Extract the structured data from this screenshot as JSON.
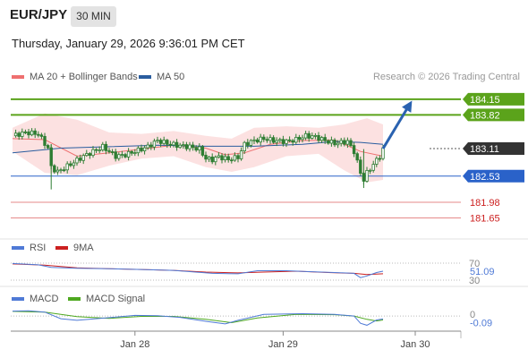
{
  "header": {
    "symbol": "EUR/JPY",
    "timeframe": "30 MIN",
    "datetime": "Thursday, January 29, 2026 9:36:01 PM CET",
    "credit": "Research © 2026 Trading Central"
  },
  "colors": {
    "ma20": "#ee7070",
    "ma50": "#2a5d9f",
    "bands": "#fbdcdc",
    "candle": "#2e7d32",
    "resistance": "#5ba31b",
    "support": "#2a62c9",
    "minor": "#e68a8a",
    "current": "#333333",
    "rsi": "#4f7ad6",
    "rsi_ma": "#cc2020",
    "macd": "#4f7ad6",
    "macd_signal": "#4ea820",
    "arrow": "#2a62b0"
  },
  "chart_data": [
    {
      "type": "candlestick",
      "legend": [
        {
          "name": "MA 20 + Bollinger Bands",
          "color": "#ee7070"
        },
        {
          "name": "MA 50",
          "color": "#2a5d9f"
        }
      ],
      "ylim": [
        181.3,
        184.45
      ],
      "levels": [
        {
          "value": 184.15,
          "label": "184.15",
          "kind": "resistance"
        },
        {
          "value": 183.82,
          "label": "183.82",
          "kind": "resistance"
        },
        {
          "value": 183.11,
          "label": "183.11",
          "kind": "current"
        },
        {
          "value": 182.53,
          "label": "182.53",
          "kind": "support"
        },
        {
          "value": 181.98,
          "label": "181.98",
          "kind": "minor"
        },
        {
          "value": 181.65,
          "label": "181.65",
          "kind": "minor"
        }
      ],
      "close_path": [
        [
          0,
          183.38
        ],
        [
          4,
          183.45
        ],
        [
          8,
          183.42
        ],
        [
          11,
          183.12
        ],
        [
          12,
          182.72
        ],
        [
          14,
          182.62
        ],
        [
          18,
          182.78
        ],
        [
          22,
          182.95
        ],
        [
          25,
          183.05
        ],
        [
          28,
          183.15
        ],
        [
          32,
          182.95
        ],
        [
          35,
          182.98
        ],
        [
          38,
          183.05
        ],
        [
          42,
          183.15
        ],
        [
          45,
          183.28
        ],
        [
          48,
          183.22
        ],
        [
          51,
          183.18
        ],
        [
          55,
          183.15
        ],
        [
          58,
          183.1
        ],
        [
          60,
          182.9
        ],
        [
          62,
          182.88
        ],
        [
          64,
          182.94
        ],
        [
          67,
          182.88
        ],
        [
          70,
          182.93
        ],
        [
          72,
          183.2
        ],
        [
          75,
          183.28
        ],
        [
          78,
          183.32
        ],
        [
          81,
          183.28
        ],
        [
          85,
          183.26
        ],
        [
          88,
          183.3
        ],
        [
          91,
          183.38
        ],
        [
          94,
          183.36
        ],
        [
          97,
          183.28
        ],
        [
          100,
          183.22
        ],
        [
          104,
          183.26
        ],
        [
          106,
          183.05
        ],
        [
          108,
          182.6
        ],
        [
          109,
          182.45
        ],
        [
          110,
          182.6
        ],
        [
          112,
          182.78
        ],
        [
          114,
          182.95
        ],
        [
          115,
          183.1
        ]
      ],
      "ma20_path": [
        [
          0,
          183.32
        ],
        [
          10,
          183.3
        ],
        [
          20,
          182.95
        ],
        [
          30,
          183.02
        ],
        [
          40,
          183.1
        ],
        [
          50,
          183.18
        ],
        [
          60,
          183.12
        ],
        [
          66,
          182.98
        ],
        [
          72,
          183.02
        ],
        [
          80,
          183.2
        ],
        [
          90,
          183.28
        ],
        [
          100,
          183.29
        ],
        [
          108,
          183.05
        ],
        [
          115,
          182.95
        ]
      ],
      "ma50_path": [
        [
          0,
          183.02
        ],
        [
          15,
          183.12
        ],
        [
          30,
          183.15
        ],
        [
          45,
          183.18
        ],
        [
          60,
          183.16
        ],
        [
          75,
          183.16
        ],
        [
          90,
          183.2
        ],
        [
          100,
          183.26
        ],
        [
          108,
          183.24
        ],
        [
          115,
          183.2
        ]
      ],
      "bands_upper": [
        [
          0,
          183.55
        ],
        [
          10,
          183.85
        ],
        [
          20,
          183.72
        ],
        [
          30,
          183.45
        ],
        [
          40,
          183.42
        ],
        [
          50,
          183.48
        ],
        [
          60,
          183.38
        ],
        [
          68,
          183.32
        ],
        [
          75,
          183.55
        ],
        [
          85,
          183.58
        ],
        [
          95,
          183.55
        ],
        [
          103,
          183.62
        ],
        [
          110,
          183.75
        ],
        [
          115,
          183.62
        ]
      ],
      "bands_lower": [
        [
          0,
          183.05
        ],
        [
          10,
          182.6
        ],
        [
          20,
          182.55
        ],
        [
          30,
          182.75
        ],
        [
          40,
          182.9
        ],
        [
          50,
          182.95
        ],
        [
          60,
          182.72
        ],
        [
          68,
          182.62
        ],
        [
          75,
          182.72
        ],
        [
          85,
          182.95
        ],
        [
          95,
          183.0
        ],
        [
          103,
          182.65
        ],
        [
          110,
          182.4
        ],
        [
          115,
          182.45
        ]
      ],
      "projection_arrow": [
        [
          115,
          183.11
        ],
        [
          124,
          184.12
        ]
      ]
    },
    {
      "type": "line",
      "legend": [
        {
          "name": "RSI",
          "color": "#4f7ad6"
        },
        {
          "name": "9MA",
          "color": "#cc2020"
        }
      ],
      "ylim": [
        28,
        72
      ],
      "ticks": [
        70,
        30
      ],
      "last_value": 51.09,
      "rsi_path": [
        [
          0,
          69
        ],
        [
          8,
          66
        ],
        [
          12,
          60
        ],
        [
          20,
          58
        ],
        [
          30,
          57
        ],
        [
          40,
          55
        ],
        [
          50,
          53
        ],
        [
          55,
          50
        ],
        [
          62,
          46
        ],
        [
          70,
          45
        ],
        [
          76,
          52
        ],
        [
          85,
          52
        ],
        [
          92,
          50
        ],
        [
          100,
          48
        ],
        [
          106,
          46
        ],
        [
          108,
          36
        ],
        [
          110,
          40
        ],
        [
          113,
          48
        ],
        [
          115,
          51
        ]
      ],
      "ma_path": [
        [
          0,
          68
        ],
        [
          10,
          65
        ],
        [
          20,
          59
        ],
        [
          30,
          57
        ],
        [
          40,
          55
        ],
        [
          50,
          53
        ],
        [
          60,
          49
        ],
        [
          70,
          47
        ],
        [
          78,
          49
        ],
        [
          88,
          51
        ],
        [
          98,
          48
        ],
        [
          106,
          46
        ],
        [
          110,
          43
        ],
        [
          115,
          45
        ]
      ]
    },
    {
      "type": "line",
      "legend": [
        {
          "name": "MACD",
          "color": "#4f7ad6"
        },
        {
          "name": "MACD Signal",
          "color": "#4ea820"
        }
      ],
      "ylim": [
        -0.35,
        0.22
      ],
      "ticks": [
        0
      ],
      "last_value": -0.09,
      "macd_path": [
        [
          0,
          0.15
        ],
        [
          5,
          0.16
        ],
        [
          10,
          0.12
        ],
        [
          15,
          -0.08
        ],
        [
          20,
          -0.13
        ],
        [
          30,
          -0.05
        ],
        [
          38,
          0.02
        ],
        [
          45,
          0.01
        ],
        [
          52,
          -0.04
        ],
        [
          60,
          -0.16
        ],
        [
          66,
          -0.24
        ],
        [
          70,
          -0.13
        ],
        [
          78,
          0.05
        ],
        [
          90,
          0.07
        ],
        [
          100,
          0.05
        ],
        [
          106,
          0.0
        ],
        [
          108,
          -0.22
        ],
        [
          110,
          -0.28
        ],
        [
          113,
          -0.12
        ],
        [
          115,
          -0.09
        ]
      ],
      "signal_path": [
        [
          0,
          0.14
        ],
        [
          10,
          0.12
        ],
        [
          20,
          -0.02
        ],
        [
          30,
          -0.07
        ],
        [
          40,
          -0.01
        ],
        [
          50,
          -0.01
        ],
        [
          60,
          -0.1
        ],
        [
          68,
          -0.2
        ],
        [
          76,
          -0.06
        ],
        [
          88,
          0.05
        ],
        [
          100,
          0.04
        ],
        [
          106,
          0.0
        ],
        [
          110,
          -0.1
        ],
        [
          113,
          -0.15
        ],
        [
          115,
          -0.12
        ]
      ]
    }
  ],
  "x_axis": {
    "ticks": [
      {
        "index": 38,
        "label": "Jan 28"
      },
      {
        "index": 84,
        "label": "Jan 29"
      },
      {
        "index": 125,
        "label": "Jan 30"
      }
    ]
  }
}
